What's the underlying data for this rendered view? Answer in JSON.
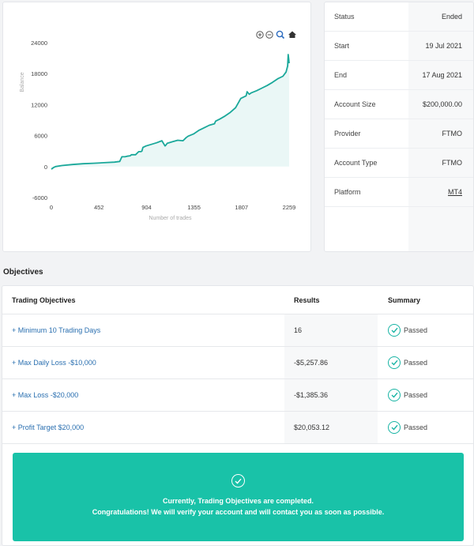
{
  "chart_data": {
    "type": "area",
    "title": "",
    "xlabel": "Number of trades",
    "ylabel": "Balance",
    "xlim": [
      0,
      2259
    ],
    "ylim": [
      -6000,
      24000
    ],
    "x_ticks": [
      "0",
      "452",
      "904",
      "1355",
      "1807",
      "2259"
    ],
    "y_ticks": [
      "24000",
      "18000",
      "12000",
      "6000",
      "0",
      "-6000"
    ],
    "grid": false,
    "series": [
      {
        "x": [
          0,
          20,
          40,
          100,
          200,
          300,
          400,
          500,
          600,
          650,
          670,
          700,
          720,
          750,
          760,
          800,
          830,
          850,
          860,
          870,
          900,
          950,
          1000,
          1050,
          1080,
          1090,
          1100,
          1150,
          1200,
          1250,
          1280,
          1300,
          1350,
          1400,
          1450,
          1500,
          1550,
          1560,
          1600,
          1650,
          1700,
          1750,
          1800,
          1850,
          1860,
          1880,
          1900,
          1950,
          2000,
          2050,
          2100,
          2150,
          2200,
          2230,
          2245,
          2250,
          2255,
          2259
        ],
        "values": [
          -500,
          -200,
          0,
          200,
          400,
          550,
          650,
          750,
          850,
          1000,
          1900,
          1900,
          2000,
          2100,
          2300,
          2300,
          2900,
          2900,
          3000,
          3700,
          4000,
          4300,
          4600,
          5000,
          4000,
          4200,
          4500,
          4800,
          5100,
          5000,
          5600,
          5900,
          6300,
          7000,
          7500,
          8000,
          8300,
          8800,
          9200,
          9800,
          10500,
          11400,
          13200,
          13700,
          14500,
          14000,
          14300,
          14700,
          15200,
          15700,
          16300,
          17000,
          17500,
          18300,
          19500,
          21700,
          20800,
          20000
        ]
      }
    ],
    "line_color": "#1aa89a",
    "fill_color": "#eaf7f6"
  },
  "toolbar": {
    "zoom_in_icon": "zoom-in-icon",
    "zoom_out_icon": "zoom-out-icon",
    "magnify_icon": "magnify-icon",
    "home_icon": "home-icon"
  },
  "info": {
    "rows": [
      {
        "label": "Status",
        "value": "Ended"
      },
      {
        "label": "Start",
        "value": "19 Jul 2021"
      },
      {
        "label": "End",
        "value": "17 Aug 2021"
      },
      {
        "label": "Account Size",
        "value": "$200,000.00"
      },
      {
        "label": "Provider",
        "value": "FTMO"
      },
      {
        "label": "Account Type",
        "value": "FTMO"
      },
      {
        "label": "Platform",
        "value": "MT4"
      }
    ]
  },
  "objectives": {
    "title": "Objectives",
    "headers": {
      "objective": "Trading Objectives",
      "results": "Results",
      "summary": "Summary"
    },
    "rows": [
      {
        "objective": "+ Minimum 10 Trading Days",
        "result": "16",
        "status": "Passed"
      },
      {
        "objective": "+ Max Daily Loss -$10,000",
        "result": "-$5,257.86",
        "status": "Passed"
      },
      {
        "objective": "+ Max Loss -$20,000",
        "result": "-$1,385.36",
        "status": "Passed"
      },
      {
        "objective": "+ Profit Target $20,000",
        "result": "$20,053.12",
        "status": "Passed"
      }
    ],
    "banner": {
      "line1": "Currently, Trading Objectives are completed.",
      "line2": "Congratulations! We will verify your account and will contact you as soon as possible."
    }
  },
  "colors": {
    "accent": "#19c2a8",
    "link": "#2a6fb0",
    "check": "#18b4a4"
  }
}
